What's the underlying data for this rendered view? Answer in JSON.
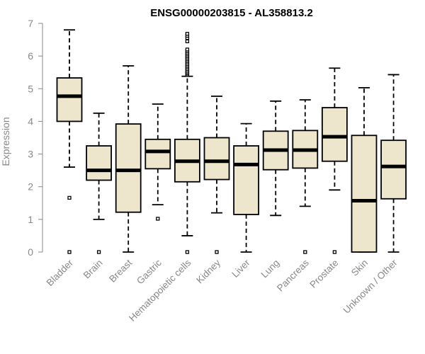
{
  "chart_data": {
    "type": "boxplot",
    "title": "ENSG00000203815 - AL358813.2",
    "xlabel": "",
    "ylabel": "Expression",
    "ylim": [
      0,
      7
    ],
    "yticks": [
      0,
      1,
      2,
      3,
      4,
      5,
      6,
      7
    ],
    "box_color": "#ede6cc",
    "median_color": "#000000",
    "categories": [
      "Bladder",
      "Brain",
      "Breast",
      "Gastric",
      "Hematopoietic cells",
      "Kidney",
      "Liver",
      "Lung",
      "Pancreas",
      "Prostate",
      "Skin",
      "Unknown / Other"
    ],
    "boxes": [
      {
        "whisker_low": 2.6,
        "q1": 4.0,
        "median": 4.77,
        "q3": 5.33,
        "whisker_high": 6.8,
        "outliers": [
          1.66,
          0.0
        ]
      },
      {
        "whisker_low": 1.0,
        "q1": 2.2,
        "median": 2.5,
        "q3": 3.25,
        "whisker_high": 4.25,
        "outliers": [
          0.0
        ]
      },
      {
        "whisker_low": 0.0,
        "q1": 1.22,
        "median": 2.5,
        "q3": 3.92,
        "whisker_high": 5.7,
        "outliers": []
      },
      {
        "whisker_low": 1.45,
        "q1": 2.55,
        "median": 3.08,
        "q3": 3.45,
        "whisker_high": 4.53,
        "outliers": [
          1.02
        ]
      },
      {
        "whisker_low": 0.5,
        "q1": 2.15,
        "median": 2.78,
        "q3": 3.45,
        "whisker_high": 5.38,
        "outliers": [
          0.0,
          5.42,
          5.46,
          5.5,
          5.55,
          5.6,
          5.65,
          5.7,
          5.75,
          5.8,
          5.85,
          5.9,
          5.95,
          6.0,
          6.05,
          6.1,
          6.15,
          6.2,
          6.45,
          6.55,
          6.62,
          6.68
        ]
      },
      {
        "whisker_low": 1.2,
        "q1": 2.22,
        "median": 2.78,
        "q3": 3.5,
        "whisker_high": 4.77,
        "outliers": [
          0.0
        ]
      },
      {
        "whisker_low": 0.0,
        "q1": 1.15,
        "median": 2.68,
        "q3": 3.25,
        "whisker_high": 3.93,
        "outliers": []
      },
      {
        "whisker_low": 1.12,
        "q1": 2.52,
        "median": 3.12,
        "q3": 3.7,
        "whisker_high": 4.62,
        "outliers": []
      },
      {
        "whisker_low": 1.4,
        "q1": 2.57,
        "median": 3.12,
        "q3": 3.72,
        "whisker_high": 4.66,
        "outliers": [
          0.0
        ]
      },
      {
        "whisker_low": 1.9,
        "q1": 2.78,
        "median": 3.53,
        "q3": 4.42,
        "whisker_high": 5.63,
        "outliers": [
          0.0
        ]
      },
      {
        "whisker_low": 0.0,
        "q1": 0.0,
        "median": 1.57,
        "q3": 3.57,
        "whisker_high": 5.03,
        "outliers": []
      },
      {
        "whisker_low": 0.0,
        "q1": 1.63,
        "median": 2.62,
        "q3": 3.42,
        "whisker_high": 5.43,
        "outliers": []
      }
    ]
  }
}
